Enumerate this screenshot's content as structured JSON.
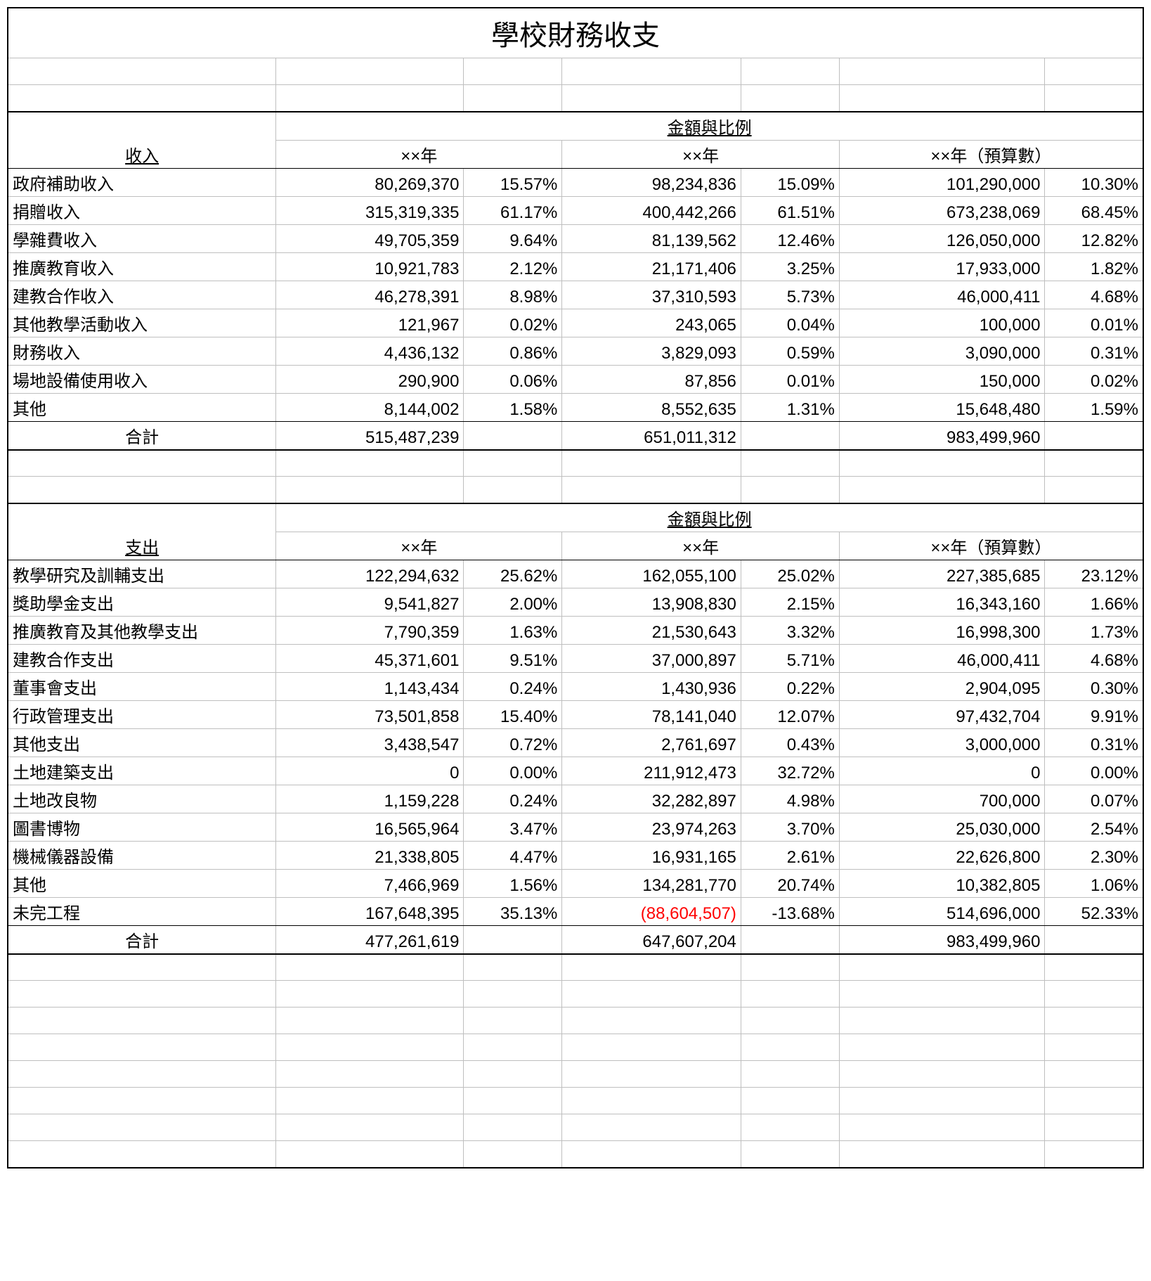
{
  "title": "學校財務收支",
  "col_header": "金額與比例",
  "year1": "××年",
  "year2": "××年",
  "year3": "××年（預算數）",
  "total_label": "合計",
  "income": {
    "section": "收入",
    "rows": [
      {
        "label": "政府補助收入",
        "a1": "80,269,370",
        "p1": "15.57%",
        "a2": "98,234,836",
        "p2": "15.09%",
        "a3": "101,290,000",
        "p3": "10.30%"
      },
      {
        "label": "捐贈收入",
        "a1": "315,319,335",
        "p1": "61.17%",
        "a2": "400,442,266",
        "p2": "61.51%",
        "a3": "673,238,069",
        "p3": "68.45%"
      },
      {
        "label": "學雜費收入",
        "a1": "49,705,359",
        "p1": "9.64%",
        "a2": "81,139,562",
        "p2": "12.46%",
        "a3": "126,050,000",
        "p3": "12.82%"
      },
      {
        "label": "推廣教育收入",
        "a1": "10,921,783",
        "p1": "2.12%",
        "a2": "21,171,406",
        "p2": "3.25%",
        "a3": "17,933,000",
        "p3": "1.82%"
      },
      {
        "label": "建教合作收入",
        "a1": "46,278,391",
        "p1": "8.98%",
        "a2": "37,310,593",
        "p2": "5.73%",
        "a3": "46,000,411",
        "p3": "4.68%"
      },
      {
        "label": "其他教學活動收入",
        "a1": "121,967",
        "p1": "0.02%",
        "a2": "243,065",
        "p2": "0.04%",
        "a3": "100,000",
        "p3": "0.01%"
      },
      {
        "label": "財務收入",
        "a1": "4,436,132",
        "p1": "0.86%",
        "a2": "3,829,093",
        "p2": "0.59%",
        "a3": "3,090,000",
        "p3": "0.31%"
      },
      {
        "label": "場地設備使用收入",
        "a1": "290,900",
        "p1": "0.06%",
        "a2": "87,856",
        "p2": "0.01%",
        "a3": "150,000",
        "p3": "0.02%"
      },
      {
        "label": "其他",
        "a1": "8,144,002",
        "p1": "1.58%",
        "a2": "8,552,635",
        "p2": "1.31%",
        "a3": "15,648,480",
        "p3": "1.59%"
      }
    ],
    "total": {
      "a1": "515,487,239",
      "a2": "651,011,312",
      "a3": "983,499,960"
    }
  },
  "expense": {
    "section": "支出",
    "rows": [
      {
        "label": "教學研究及訓輔支出",
        "a1": "122,294,632",
        "p1": "25.62%",
        "a2": "162,055,100",
        "p2": "25.02%",
        "a3": "227,385,685",
        "p3": "23.12%"
      },
      {
        "label": "獎助學金支出",
        "a1": "9,541,827",
        "p1": "2.00%",
        "a2": "13,908,830",
        "p2": "2.15%",
        "a3": "16,343,160",
        "p3": "1.66%"
      },
      {
        "label": "推廣教育及其他教學支出",
        "a1": "7,790,359",
        "p1": "1.63%",
        "a2": "21,530,643",
        "p2": "3.32%",
        "a3": "16,998,300",
        "p3": "1.73%"
      },
      {
        "label": "建教合作支出",
        "a1": "45,371,601",
        "p1": "9.51%",
        "a2": "37,000,897",
        "p2": "5.71%",
        "a3": "46,000,411",
        "p3": "4.68%"
      },
      {
        "label": "董事會支出",
        "a1": "1,143,434",
        "p1": "0.24%",
        "a2": "1,430,936",
        "p2": "0.22%",
        "a3": "2,904,095",
        "p3": "0.30%"
      },
      {
        "label": "行政管理支出",
        "a1": "73,501,858",
        "p1": "15.40%",
        "a2": "78,141,040",
        "p2": "12.07%",
        "a3": "97,432,704",
        "p3": "9.91%"
      },
      {
        "label": "其他支出",
        "a1": "3,438,547",
        "p1": "0.72%",
        "a2": "2,761,697",
        "p2": "0.43%",
        "a3": "3,000,000",
        "p3": "0.31%"
      },
      {
        "label": "土地建築支出",
        "a1": "0",
        "p1": "0.00%",
        "a2": "211,912,473",
        "p2": "32.72%",
        "a3": "0",
        "p3": "0.00%"
      },
      {
        "label": "土地改良物",
        "a1": "1,159,228",
        "p1": "0.24%",
        "a2": "32,282,897",
        "p2": "4.98%",
        "a3": "700,000",
        "p3": "0.07%"
      },
      {
        "label": "圖書博物",
        "a1": "16,565,964",
        "p1": "3.47%",
        "a2": "23,974,263",
        "p2": "3.70%",
        "a3": "25,030,000",
        "p3": "2.54%"
      },
      {
        "label": "機械儀器設備",
        "a1": "21,338,805",
        "p1": "4.47%",
        "a2": "16,931,165",
        "p2": "2.61%",
        "a3": "22,626,800",
        "p3": "2.30%"
      },
      {
        "label": "其他",
        "a1": "7,466,969",
        "p1": "1.56%",
        "a2": "134,281,770",
        "p2": "20.74%",
        "a3": "10,382,805",
        "p3": "1.06%"
      },
      {
        "label": "未完工程",
        "a1": "167,648,395",
        "p1": "35.13%",
        "a2": "(88,604,507)",
        "p2": "-13.68%",
        "a3": "514,696,000",
        "p3": "52.33%",
        "neg2": true
      }
    ],
    "total": {
      "a1": "477,261,619",
      "a2": "647,607,204",
      "a3": "983,499,960"
    }
  },
  "trailing_blank_rows": 8
}
